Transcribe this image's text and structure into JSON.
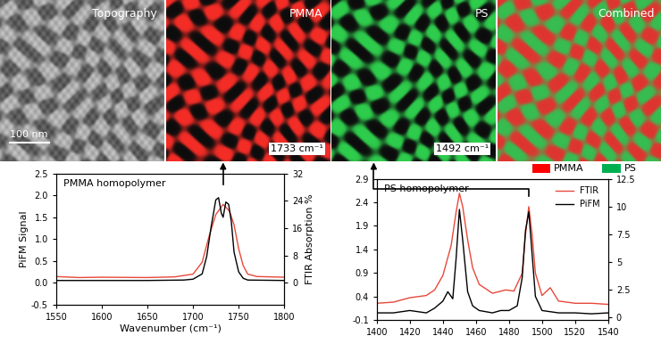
{
  "images": [
    {
      "title": "Topography",
      "scale_bar": "100 nm"
    },
    {
      "title": "PMMA",
      "label": "1733 cm⁻¹",
      "wavenumber": 1733,
      "color": "#e8201a"
    },
    {
      "title": "PS",
      "label": "1492 cm⁻¹",
      "wavenumber": 1492,
      "color": "#22c040"
    },
    {
      "title": "Combined"
    }
  ],
  "legend": [
    {
      "name": "PMMA",
      "color": "#ff0000"
    },
    {
      "name": "PS",
      "color": "#00b050"
    }
  ],
  "chart_data": [
    {
      "type": "line",
      "title": "PMMA homopolymer",
      "x_label": "Wavenumber (cm⁻¹)",
      "y_label": "PiFM Signal",
      "y2_label": "FTIR Absorption %",
      "xlim": [
        1550,
        1800
      ],
      "xticks": [
        1550,
        1600,
        1650,
        1700,
        1750,
        1800
      ],
      "ylim": [
        -0.5,
        2.5
      ],
      "yticks": [
        -0.5,
        0.0,
        0.5,
        1.0,
        1.5,
        2.0,
        2.5
      ],
      "y2lim": [
        -6.4,
        32
      ],
      "y2ticks": [
        0,
        8,
        16,
        24,
        32
      ],
      "series": [
        {
          "color": "#000000",
          "x": [
            1550,
            1600,
            1650,
            1690,
            1700,
            1710,
            1715,
            1720,
            1725,
            1728,
            1731,
            1733,
            1736,
            1739,
            1742,
            1745,
            1750,
            1755,
            1760,
            1800
          ],
          "values": [
            0.05,
            0.05,
            0.05,
            0.06,
            0.08,
            0.2,
            0.6,
            1.3,
            1.9,
            1.95,
            1.6,
            1.5,
            1.85,
            1.8,
            1.4,
            0.7,
            0.25,
            0.1,
            0.06,
            0.05
          ]
        },
        {
          "color": "#e8483a",
          "axis": "y2",
          "x": [
            1550,
            1575,
            1600,
            1650,
            1680,
            1700,
            1710,
            1718,
            1725,
            1733,
            1740,
            1745,
            1750,
            1755,
            1760,
            1770,
            1800
          ],
          "values": [
            1.8,
            1.5,
            1.6,
            1.5,
            1.7,
            2.5,
            6,
            14,
            20,
            23,
            21,
            17,
            10,
            5,
            2.5,
            1.8,
            1.6
          ]
        }
      ]
    },
    {
      "type": "line",
      "title": "PS homopolymer",
      "legend": "upper right",
      "xlim": [
        1400,
        1540
      ],
      "xticks": [
        1400,
        1420,
        1440,
        1460,
        1480,
        1500,
        1520,
        1540
      ],
      "ylim": [
        -0.1,
        2.9
      ],
      "yticks": [
        -0.1,
        0.4,
        0.9,
        1.4,
        1.9,
        2.4,
        2.9
      ],
      "y2lim": [
        -0.2,
        12.5
      ],
      "y2ticks": [
        0,
        2.5,
        5,
        7.5,
        10,
        12.5
      ],
      "series": [
        {
          "name": "FTIR",
          "color": "#e8483a",
          "axis": "y2",
          "x": [
            1400,
            1410,
            1420,
            1430,
            1435,
            1440,
            1445,
            1448,
            1450,
            1452,
            1455,
            1458,
            1462,
            1470,
            1478,
            1483,
            1488,
            1490,
            1492,
            1494,
            1496,
            1500,
            1505,
            1510,
            1520,
            1530,
            1540
          ],
          "values": [
            1.3,
            1.4,
            1.8,
            2.0,
            2.5,
            3.8,
            6.5,
            9.5,
            11.2,
            10,
            7,
            4.5,
            3,
            2.2,
            2.5,
            2.4,
            4,
            7.5,
            10,
            7.5,
            4,
            2,
            2.7,
            1.5,
            1.3,
            1.3,
            1.2
          ]
        },
        {
          "name": "PiFM",
          "color": "#000000",
          "x": [
            1400,
            1410,
            1420,
            1430,
            1435,
            1440,
            1443,
            1446,
            1448,
            1450,
            1452,
            1455,
            1458,
            1462,
            1470,
            1475,
            1480,
            1485,
            1488,
            1490,
            1492,
            1494,
            1496,
            1500,
            1510,
            1520,
            1530,
            1540
          ],
          "values": [
            0.05,
            0.05,
            0.1,
            0.05,
            0.15,
            0.3,
            0.5,
            0.35,
            1.2,
            2.25,
            1.6,
            0.5,
            0.2,
            0.1,
            0.05,
            0.1,
            0.1,
            0.2,
            0.8,
            1.8,
            2.2,
            1.3,
            0.4,
            0.1,
            0.05,
            0.05,
            0.03,
            0.05
          ]
        }
      ]
    }
  ]
}
